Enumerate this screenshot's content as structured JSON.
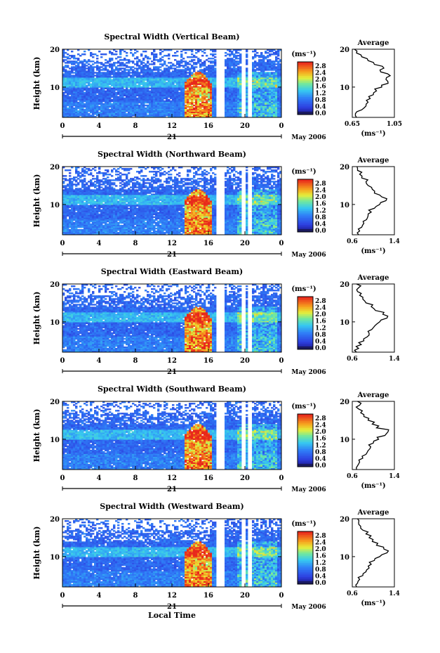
{
  "chart_data": [
    {
      "type": "heatmap",
      "title": "Spectral Width (Vertical Beam)",
      "ylabel": "Height (km)",
      "yticks": [
        "20",
        "10"
      ],
      "xticks": [
        "0",
        "4",
        "8",
        "12",
        "16",
        "20",
        "0"
      ],
      "day_label": "21",
      "date_label": "May 2006",
      "ylim": [
        2,
        20
      ],
      "xlim": [
        0,
        24
      ],
      "colorbar": {
        "unit_label": "(ms⁻¹)",
        "ticks": [
          "2.8",
          "2.4",
          "2.0",
          "1.6",
          "1.2",
          "0.8",
          "0.4",
          "0.0"
        ]
      },
      "profile": {
        "title": "Average",
        "xlabel": "(ms⁻¹)",
        "xticks": [
          "0.65",
          "1.05"
        ],
        "xlim": [
          0.65,
          1.05
        ],
        "yticks": [
          "20",
          "10"
        ],
        "ylim": [
          2,
          20
        ],
        "heights": [
          2,
          3,
          4,
          5,
          6,
          7,
          8,
          9,
          10,
          11,
          12,
          13,
          14,
          15,
          16,
          17,
          18,
          19,
          20
        ],
        "values": [
          0.69,
          0.68,
          0.74,
          0.78,
          0.8,
          0.82,
          0.85,
          0.88,
          0.93,
          0.99,
          0.97,
          1.01,
          0.92,
          0.95,
          0.86,
          0.8,
          0.74,
          0.69,
          0.67
        ]
      }
    },
    {
      "type": "heatmap",
      "title": "Spectral Width (Northward Beam)",
      "ylabel": "Height (km)",
      "yticks": [
        "20",
        "10"
      ],
      "xticks": [
        "0",
        "4",
        "8",
        "12",
        "16",
        "20",
        "0"
      ],
      "day_label": "21",
      "date_label": "May 2006",
      "ylim": [
        2,
        20
      ],
      "xlim": [
        0,
        24
      ],
      "colorbar": {
        "unit_label": "(ms⁻¹)",
        "ticks": [
          "2.8",
          "2.4",
          "2.0",
          "1.6",
          "1.2",
          "0.8",
          "0.4",
          "0.0"
        ]
      },
      "profile": {
        "title": "Average",
        "xlabel": "(ms⁻¹)",
        "xticks": [
          "0.6",
          "1.4"
        ],
        "xlim": [
          0.6,
          1.4
        ],
        "yticks": [
          "20",
          "10"
        ],
        "ylim": [
          2,
          20
        ],
        "heights": [
          2,
          3,
          4,
          5,
          6,
          7,
          8,
          9,
          10,
          11,
          12,
          13,
          14,
          15,
          16,
          17,
          18,
          19,
          20
        ],
        "values": [
          0.72,
          0.74,
          0.78,
          0.82,
          0.87,
          0.9,
          0.96,
          1.02,
          1.12,
          1.24,
          1.16,
          1.02,
          0.98,
          0.9,
          0.86,
          0.78,
          0.74,
          0.7,
          0.69
        ]
      }
    },
    {
      "type": "heatmap",
      "title": "Spectral Width (Eastward Beam)",
      "ylabel": "Height (km)",
      "yticks": [
        "20",
        "10"
      ],
      "xticks": [
        "0",
        "4",
        "8",
        "12",
        "16",
        "20",
        "0"
      ],
      "day_label": "21",
      "date_label": "May 2006",
      "ylim": [
        2,
        20
      ],
      "xlim": [
        0,
        24
      ],
      "colorbar": {
        "unit_label": "(ms⁻¹)",
        "ticks": [
          "2.8",
          "2.4",
          "2.0",
          "1.6",
          "1.2",
          "0.8",
          "0.4",
          "0.0"
        ]
      },
      "profile": {
        "title": "Average",
        "xlabel": "",
        "xticks": [
          "0.6",
          "1.4"
        ],
        "xlim": [
          0.6,
          1.4
        ],
        "yticks": [
          "20",
          "10"
        ],
        "ylim": [
          2,
          20
        ],
        "heights": [
          2,
          3,
          4,
          5,
          6,
          7,
          8,
          9,
          10,
          11,
          12,
          13,
          14,
          15,
          16,
          17,
          18,
          19,
          20
        ],
        "values": [
          0.68,
          0.72,
          0.77,
          0.82,
          0.88,
          0.92,
          0.97,
          1.03,
          1.12,
          1.26,
          1.18,
          1.04,
          0.96,
          0.86,
          0.8,
          0.74,
          0.7,
          0.72,
          0.68
        ]
      }
    },
    {
      "type": "heatmap",
      "title": "Spectral Width (Southward Beam)",
      "ylabel": "Height (km)",
      "yticks": [
        "20",
        "10"
      ],
      "xticks": [
        "0",
        "4",
        "8",
        "12",
        "16",
        "20",
        "0"
      ],
      "day_label": "21",
      "date_label": "May 2006",
      "ylim": [
        2,
        20
      ],
      "xlim": [
        0,
        24
      ],
      "colorbar": {
        "unit_label": "(ms⁻¹)",
        "ticks": [
          "2.8",
          "2.4",
          "2.0",
          "1.6",
          "1.2",
          "0.8",
          "0.4",
          "0.0"
        ]
      },
      "profile": {
        "title": "Average",
        "xlabel": "(ms⁻¹)",
        "xticks": [
          "0.6",
          "1.4"
        ],
        "xlim": [
          0.6,
          1.4
        ],
        "yticks": [
          "20",
          "10"
        ],
        "ylim": [
          2,
          20
        ],
        "heights": [
          2,
          3,
          4,
          5,
          6,
          7,
          8,
          9,
          10,
          11,
          12,
          13,
          14,
          15,
          16,
          17,
          18,
          19,
          20
        ],
        "values": [
          0.68,
          0.7,
          0.74,
          0.8,
          0.86,
          0.9,
          0.95,
          1.0,
          1.1,
          1.22,
          1.28,
          1.06,
          0.98,
          0.9,
          0.82,
          0.76,
          0.72,
          0.74,
          0.7
        ]
      }
    },
    {
      "type": "heatmap",
      "title": "Spectral Width (Westward Beam)",
      "ylabel": "Height (km)",
      "yticks": [
        "20",
        "10"
      ],
      "xticks": [
        "0",
        "4",
        "8",
        "12",
        "16",
        "20",
        "0"
      ],
      "day_label": "21",
      "date_label": "May 2006",
      "xlabel": "Local Time",
      "ylim": [
        2,
        20
      ],
      "xlim": [
        0,
        24
      ],
      "colorbar": {
        "unit_label": "(ms⁻¹)",
        "ticks": [
          "2.8",
          "2.4",
          "2.0",
          "1.6",
          "1.2",
          "0.8",
          "0.4",
          "0.0"
        ]
      },
      "profile": {
        "title": "Average",
        "xlabel": "(ms⁻¹)",
        "xticks": [
          "0.6",
          "1.4"
        ],
        "xlim": [
          0.6,
          1.4
        ],
        "yticks": [
          "20",
          "10"
        ],
        "ylim": [
          2,
          20
        ],
        "heights": [
          2,
          3,
          4,
          5,
          6,
          7,
          8,
          9,
          10,
          11,
          12,
          13,
          14,
          15,
          16,
          17,
          18,
          19,
          20
        ],
        "values": [
          0.68,
          0.7,
          0.74,
          0.8,
          0.86,
          0.92,
          0.96,
          1.02,
          1.12,
          1.26,
          1.2,
          1.06,
          0.98,
          0.92,
          0.86,
          0.8,
          0.76,
          0.72,
          0.7
        ]
      }
    }
  ]
}
